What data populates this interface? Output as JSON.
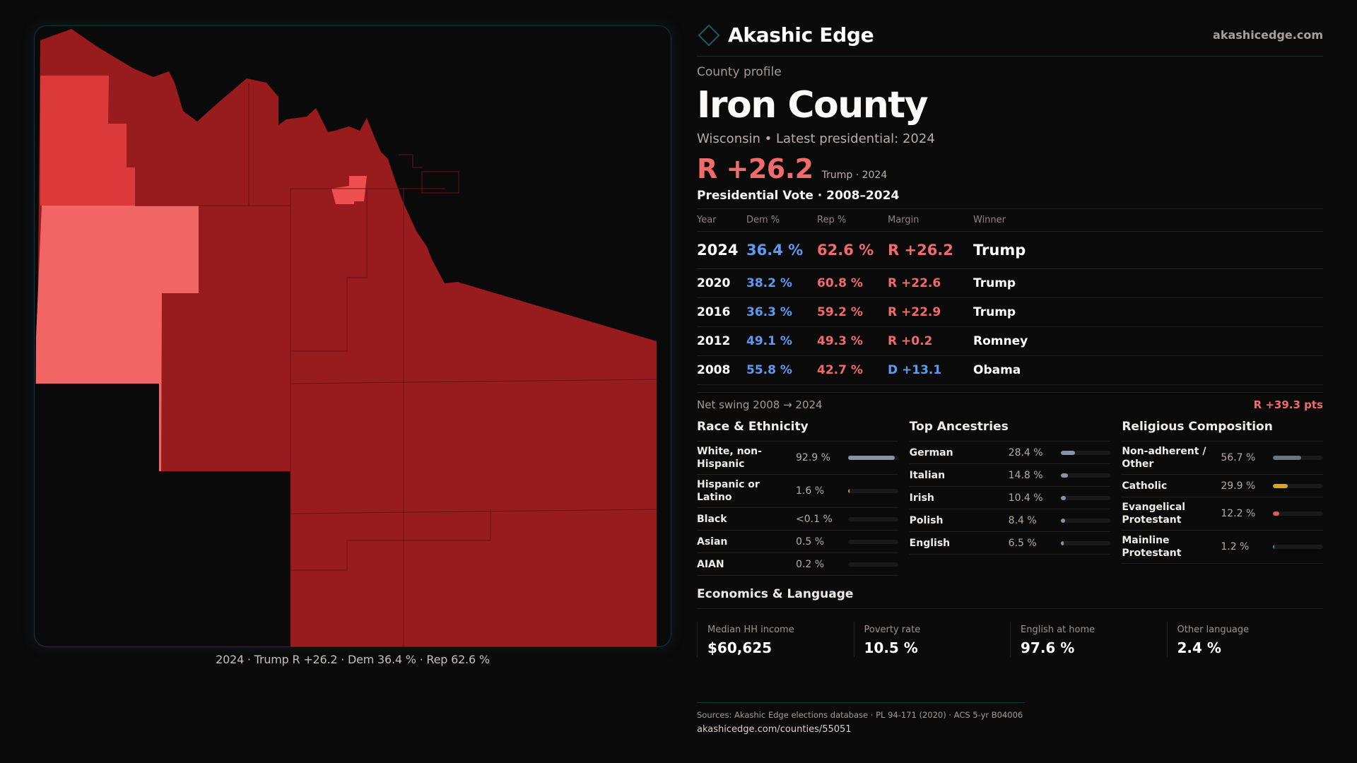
{
  "brand": {
    "name": "Akashic Edge",
    "site": "akashicedge.com",
    "logo_icon": "diamond-outline-icon",
    "accent": "#1c5a66"
  },
  "profile": {
    "eyebrow": "County profile",
    "county": "Iron County",
    "subtitle": "Wisconsin • Latest presidential: 2024",
    "headline_margin": "R +26.2",
    "headline_sub": "Trump · 2024"
  },
  "votes": {
    "title": "Presidential Vote · 2008–2024",
    "columns": [
      "Year",
      "Dem %",
      "Rep %",
      "Margin",
      "Winner"
    ],
    "rows": [
      {
        "year": "2024",
        "dem": "36.4 %",
        "rep": "62.6 %",
        "margin": "R +26.2",
        "party": "R",
        "winner": "Trump"
      },
      {
        "year": "2020",
        "dem": "38.2 %",
        "rep": "60.8 %",
        "margin": "R +22.6",
        "party": "R",
        "winner": "Trump"
      },
      {
        "year": "2016",
        "dem": "36.3 %",
        "rep": "59.2 %",
        "margin": "R +22.9",
        "party": "R",
        "winner": "Trump"
      },
      {
        "year": "2012",
        "dem": "49.1 %",
        "rep": "49.3 %",
        "margin": "R +0.2",
        "party": "R",
        "winner": "Romney"
      },
      {
        "year": "2008",
        "dem": "55.8 %",
        "rep": "42.7 %",
        "margin": "D +13.1",
        "party": "D",
        "winner": "Obama"
      }
    ],
    "swing_label": "Net swing 2008 → 2024",
    "swing_value": "R +39.3 pts"
  },
  "race": {
    "title": "Race & Ethnicity",
    "items": [
      {
        "label": "White, non-Hispanic",
        "value": "92.9 %",
        "pct": 92.9,
        "color": "#8794a8"
      },
      {
        "label": "Hispanic or Latino",
        "value": "1.6 %",
        "pct": 1.6,
        "color": "#d99a2b"
      },
      {
        "label": "Black",
        "value": "<0.1 %",
        "pct": 0.05,
        "color": "#8794a8"
      },
      {
        "label": "Asian",
        "value": "0.5 %",
        "pct": 0.5,
        "color": "#8794a8"
      },
      {
        "label": "AIAN",
        "value": "0.2 %",
        "pct": 0.2,
        "color": "#8794a8"
      }
    ]
  },
  "ancestry": {
    "title": "Top Ancestries",
    "items": [
      {
        "label": "German",
        "value": "28.4 %",
        "pct": 28.4,
        "color": "#8794a8"
      },
      {
        "label": "Italian",
        "value": "14.8 %",
        "pct": 14.8,
        "color": "#8794a8"
      },
      {
        "label": "Irish",
        "value": "10.4 %",
        "pct": 10.4,
        "color": "#8794a8"
      },
      {
        "label": "Polish",
        "value": "8.4 %",
        "pct": 8.4,
        "color": "#8794a8"
      },
      {
        "label": "English",
        "value": "6.5 %",
        "pct": 6.5,
        "color": "#8794a8"
      }
    ]
  },
  "religion": {
    "title": "Religious Composition",
    "items": [
      {
        "label": "Non-adherent / Other",
        "value": "56.7 %",
        "pct": 56.7,
        "color": "#6b7280"
      },
      {
        "label": "Catholic",
        "value": "29.9 %",
        "pct": 29.9,
        "color": "#d8a620"
      },
      {
        "label": "Evangelical Protestant",
        "value": "12.2 %",
        "pct": 12.2,
        "color": "#e05a5a"
      },
      {
        "label": "Mainline Protestant",
        "value": "1.2 %",
        "pct": 1.2,
        "color": "#4f86d6"
      }
    ]
  },
  "economics": {
    "title": "Economics & Language",
    "cards": [
      {
        "label": "Median HH income",
        "value": "$60,625"
      },
      {
        "label": "Poverty rate",
        "value": "10.5 %"
      },
      {
        "label": "English at home",
        "value": "97.6 %"
      },
      {
        "label": "Other language",
        "value": "2.4 %"
      }
    ]
  },
  "map": {
    "caption": "2024 · Trump R +26.2 · Dem 36.4 % · Rep 62.6 %",
    "colors": {
      "strong_r": "#981b1e",
      "mid_r": "#dc3a3a",
      "lean_r": "#f26565",
      "town_r": "#f04f4f",
      "border": "#6a1214"
    }
  },
  "sources": {
    "text": "Sources: Akashic Edge elections database · PL 94-171 (2020) · ACS 5-yr B04006",
    "url": "akashicedge.com/counties/55051"
  }
}
